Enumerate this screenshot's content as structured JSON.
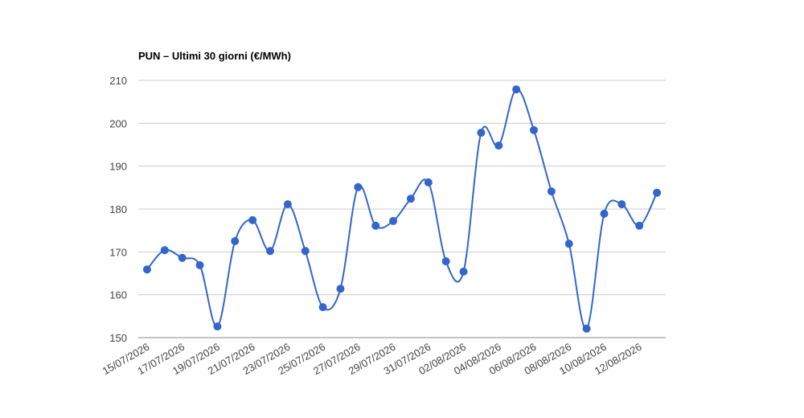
{
  "chart_data": {
    "type": "line",
    "title": "PUN – Ultimi 30 giorni (€/MWh)",
    "categories": [
      "15/07/2026",
      null,
      "17/07/2026",
      null,
      "19/07/2026",
      null,
      "21/07/2026",
      null,
      "23/07/2026",
      null,
      "25/07/2026",
      null,
      "27/07/2026",
      null,
      "29/07/2026",
      null,
      "31/07/2026",
      null,
      "02/08/2026",
      null,
      "04/08/2026",
      null,
      "06/08/2026",
      null,
      "08/08/2026",
      null,
      "10/08/2026",
      null,
      "12/08/2026",
      null
    ],
    "values": [
      165.9,
      170.4,
      168.6,
      166.9,
      152.6,
      172.5,
      177.4,
      170.2,
      181.1,
      170.2,
      157.1,
      161.4,
      185.1,
      176.1,
      177.2,
      182.4,
      186.2,
      167.8,
      165.4,
      197.8,
      194.8,
      207.9,
      198.4,
      184.1,
      171.9,
      152.1,
      178.9,
      181.1,
      176.1,
      183.8
    ],
    "color": "#3366cc",
    "ylim": [
      150,
      210
    ],
    "yticks": [
      150,
      160,
      170,
      180,
      190,
      200,
      210
    ],
    "grid": true
  }
}
